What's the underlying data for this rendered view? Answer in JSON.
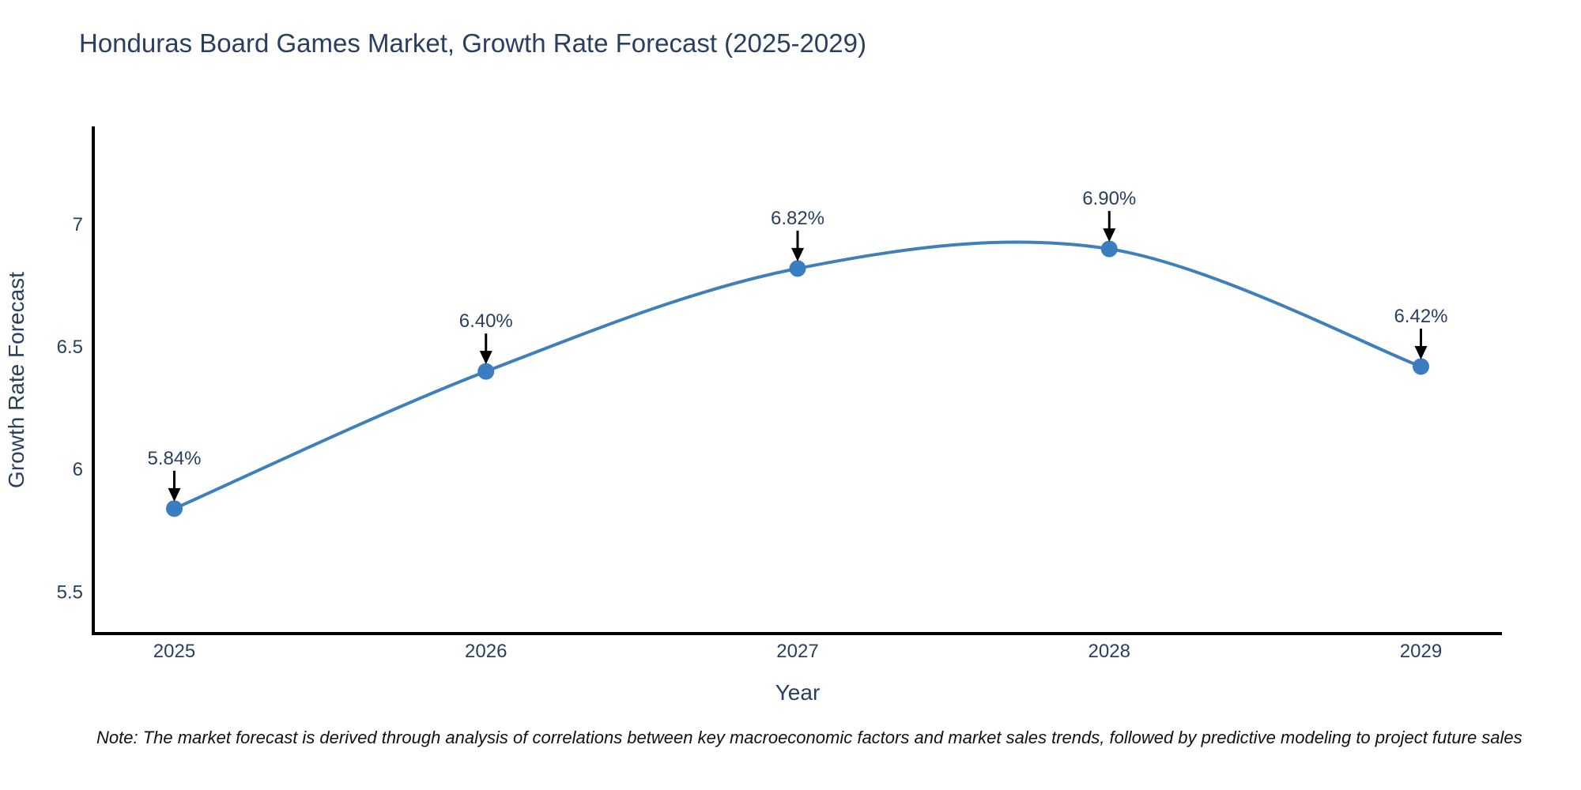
{
  "title": {
    "text": "Honduras Board Games Market, Growth Rate Forecast (2025-2029)",
    "color": "#2a3f5f"
  },
  "note": {
    "text": "Note: The market forecast is derived through analysis of correlations between key macroeconomic factors and market sales trends, followed by predictive modeling to project future sales"
  },
  "chart_data": {
    "type": "line",
    "title": "Honduras Board Games Market, Growth Rate Forecast (2025-2029)",
    "xlabel": "Year",
    "ylabel": "Growth Rate Forecast",
    "x": [
      2025,
      2026,
      2027,
      2028,
      2029
    ],
    "values": [
      5.84,
      6.4,
      6.82,
      6.9,
      6.42
    ],
    "point_labels": [
      "5.84%",
      "6.40%",
      "6.82%",
      "6.90%",
      "6.42%"
    ],
    "x_ticks": [
      2025,
      2026,
      2027,
      2028,
      2029
    ],
    "y_ticks": [
      5.5,
      6,
      6.5,
      7
    ],
    "xlim": [
      2024.74,
      2029.26
    ],
    "ylim": [
      5.33,
      7.4
    ],
    "line_shape": "spline",
    "grid": false,
    "legend_position": "none",
    "colors": {
      "line": "#3f7fba",
      "marker": "#3a7ebf",
      "axis_line": "#000000",
      "text": "#2a3f5f",
      "annotation_arrow": "#000000"
    }
  }
}
